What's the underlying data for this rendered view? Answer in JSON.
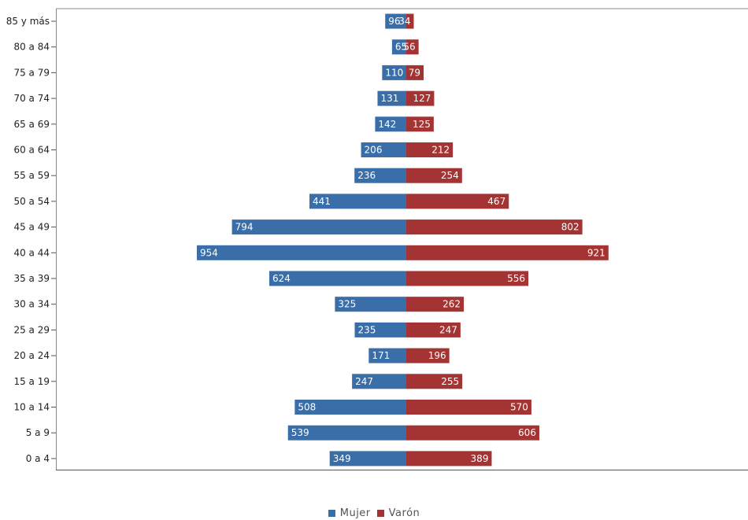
{
  "chart_data": {
    "type": "bar",
    "orientation": "horizontal",
    "subtype": "population-pyramid",
    "title": "",
    "xlabel": "",
    "ylabel": "",
    "categories": [
      "85 y más",
      "80 a 84",
      "75 a 79",
      "70 a 74",
      "65 a 69",
      "60 a 64",
      "55 a 59",
      "50 a 54",
      "45 a 49",
      "40 a 44",
      "35 a 39",
      "30 a 34",
      "25 a 29",
      "20 a 24",
      "15 a 19",
      "10 a 14",
      "5 a 9",
      "0 a 4"
    ],
    "series": [
      {
        "name": "Mujer",
        "color": "#3a6ea8",
        "direction": "left",
        "values": [
          96,
          65,
          110,
          131,
          142,
          206,
          236,
          441,
          794,
          954,
          624,
          325,
          235,
          171,
          247,
          508,
          539,
          349
        ]
      },
      {
        "name": "Varón",
        "color": "#a43333",
        "direction": "right",
        "values": [
          34,
          56,
          79,
          127,
          125,
          212,
          254,
          467,
          802,
          921,
          556,
          262,
          247,
          196,
          255,
          570,
          606,
          389
        ]
      }
    ],
    "xlim": [
      -1000,
      1000
    ],
    "grid": false,
    "legend_position": "bottom-center"
  }
}
